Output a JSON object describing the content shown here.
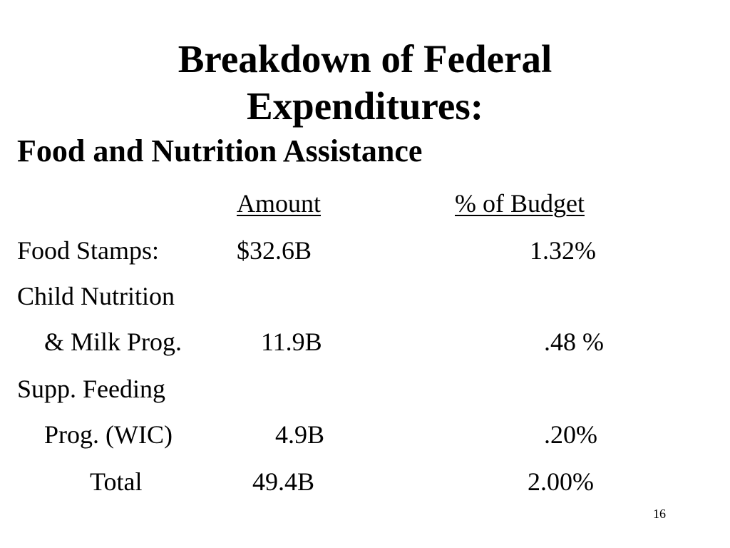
{
  "title": {
    "line1": "Breakdown of Federal",
    "line2": "Expenditures:"
  },
  "subtitle": "Food and Nutrition Assistance",
  "table": {
    "headers": {
      "amount": "Amount",
      "percent": "% of Budget"
    },
    "rows": [
      {
        "label": "Food Stamps:",
        "amount": "$32.6B",
        "percent": "1.32%"
      },
      {
        "label": "Child Nutrition"
      },
      {
        "label": "& Milk Prog.",
        "amount": "11.9B",
        "percent": ".48 %"
      },
      {
        "label": "Supp. Feeding"
      },
      {
        "label": "Prog. (WIC)",
        "amount": "4.9B",
        "percent": ".20%"
      },
      {
        "label": "Total",
        "amount": "49.4B",
        "percent": "2.00%"
      }
    ]
  },
  "page_number": "16"
}
